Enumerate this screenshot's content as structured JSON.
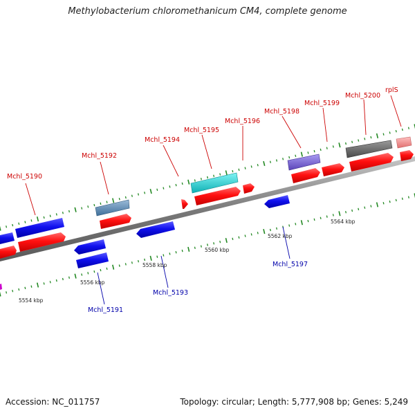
{
  "title": "Methylobacterium chloromethanicum CM4, complete genome",
  "accession": "Accession: NC_011757",
  "topology": "Topology: circular; Length: 5,777,908 bp; Genes: 5,249",
  "colors": {
    "forward_gene": "#ff0000",
    "reverse_gene": "#0000ff",
    "forward_label": "#cc0000",
    "reverse_label": "#0000aa",
    "backbone": "#888888",
    "tick": "#228822"
  },
  "scale_labels": [
    "5554 kbp",
    "5556 kbp",
    "5558 kbp",
    "5560 kbp",
    "5562 kbp",
    "5564 kbp"
  ],
  "forward_labels": [
    "Mchl_5190",
    "Mchl_5192",
    "Mchl_5194",
    "Mchl_5195",
    "Mchl_5196",
    "Mchl_5198",
    "Mchl_5199",
    "Mchl_5200",
    "rplS"
  ],
  "reverse_labels": [
    "Mchl_5191",
    "Mchl_5193",
    "Mchl_5197"
  ]
}
